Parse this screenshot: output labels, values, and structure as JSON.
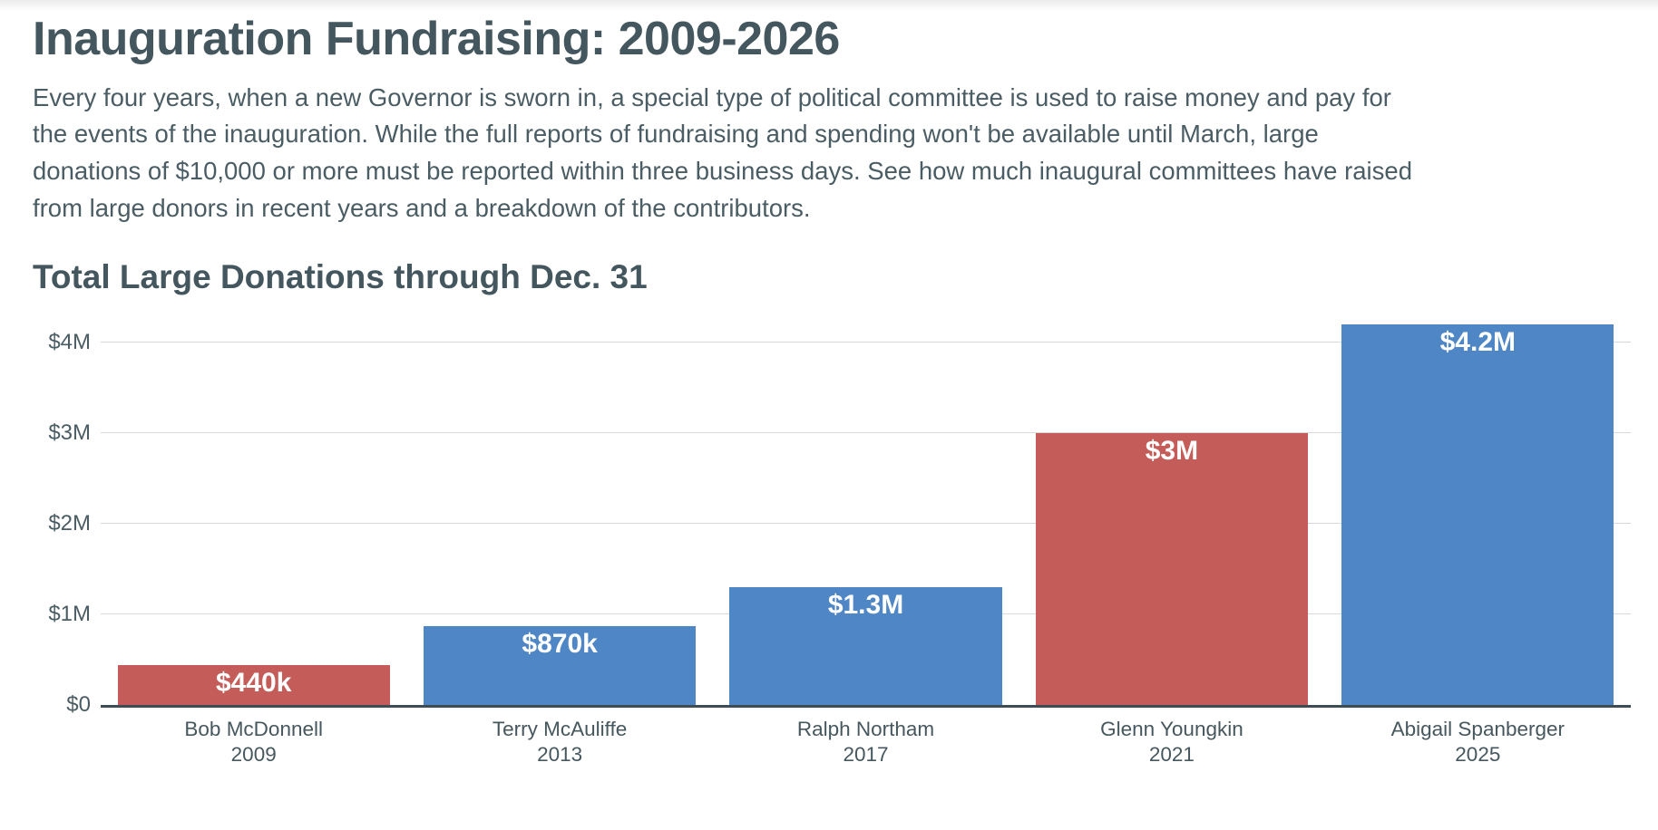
{
  "page": {
    "title": "Inauguration Fundraising: 2009-2026",
    "description": "Every four years, when a new Governor is sworn in, a special type of political committee is used to raise money and pay for the events of the inauguration. While the full reports of fundraising and spending won't be available until March, large donations of $10,000 or more must be reported within three business days. See how much inaugural committees have raised from large donors in recent years and a breakdown of the contributors."
  },
  "chart_data": {
    "type": "bar",
    "title": "Total Large Donations through Dec. 31",
    "categories": [
      "Bob McDonnell",
      "Terry McAuliffe",
      "Ralph Northam",
      "Glenn Youngkin",
      "Abigail Spanberger"
    ],
    "category_years": [
      "2009",
      "2013",
      "2017",
      "2021",
      "2025"
    ],
    "values": [
      440000,
      870000,
      1300000,
      3000000,
      4200000
    ],
    "value_labels": [
      "$440k",
      "$870k",
      "$1.3M",
      "$3M",
      "$4.2M"
    ],
    "bar_colors": [
      "#c45d59",
      "#4f86c5",
      "#4f86c5",
      "#c45d59",
      "#4f86c5"
    ],
    "value_label_color": "#ffffff",
    "yticks": [
      {
        "label": "$0",
        "value": 0
      },
      {
        "label": "$1M",
        "value": 1000000
      },
      {
        "label": "$2M",
        "value": 2000000
      },
      {
        "label": "$3M",
        "value": 3000000
      },
      {
        "label": "$4M",
        "value": 4000000
      }
    ],
    "ylim": [
      0,
      4250000
    ],
    "grid": "horizontal",
    "legend": "none",
    "gridline_color": "#d9d9d9",
    "axis_line_color": "#3e4d55"
  }
}
